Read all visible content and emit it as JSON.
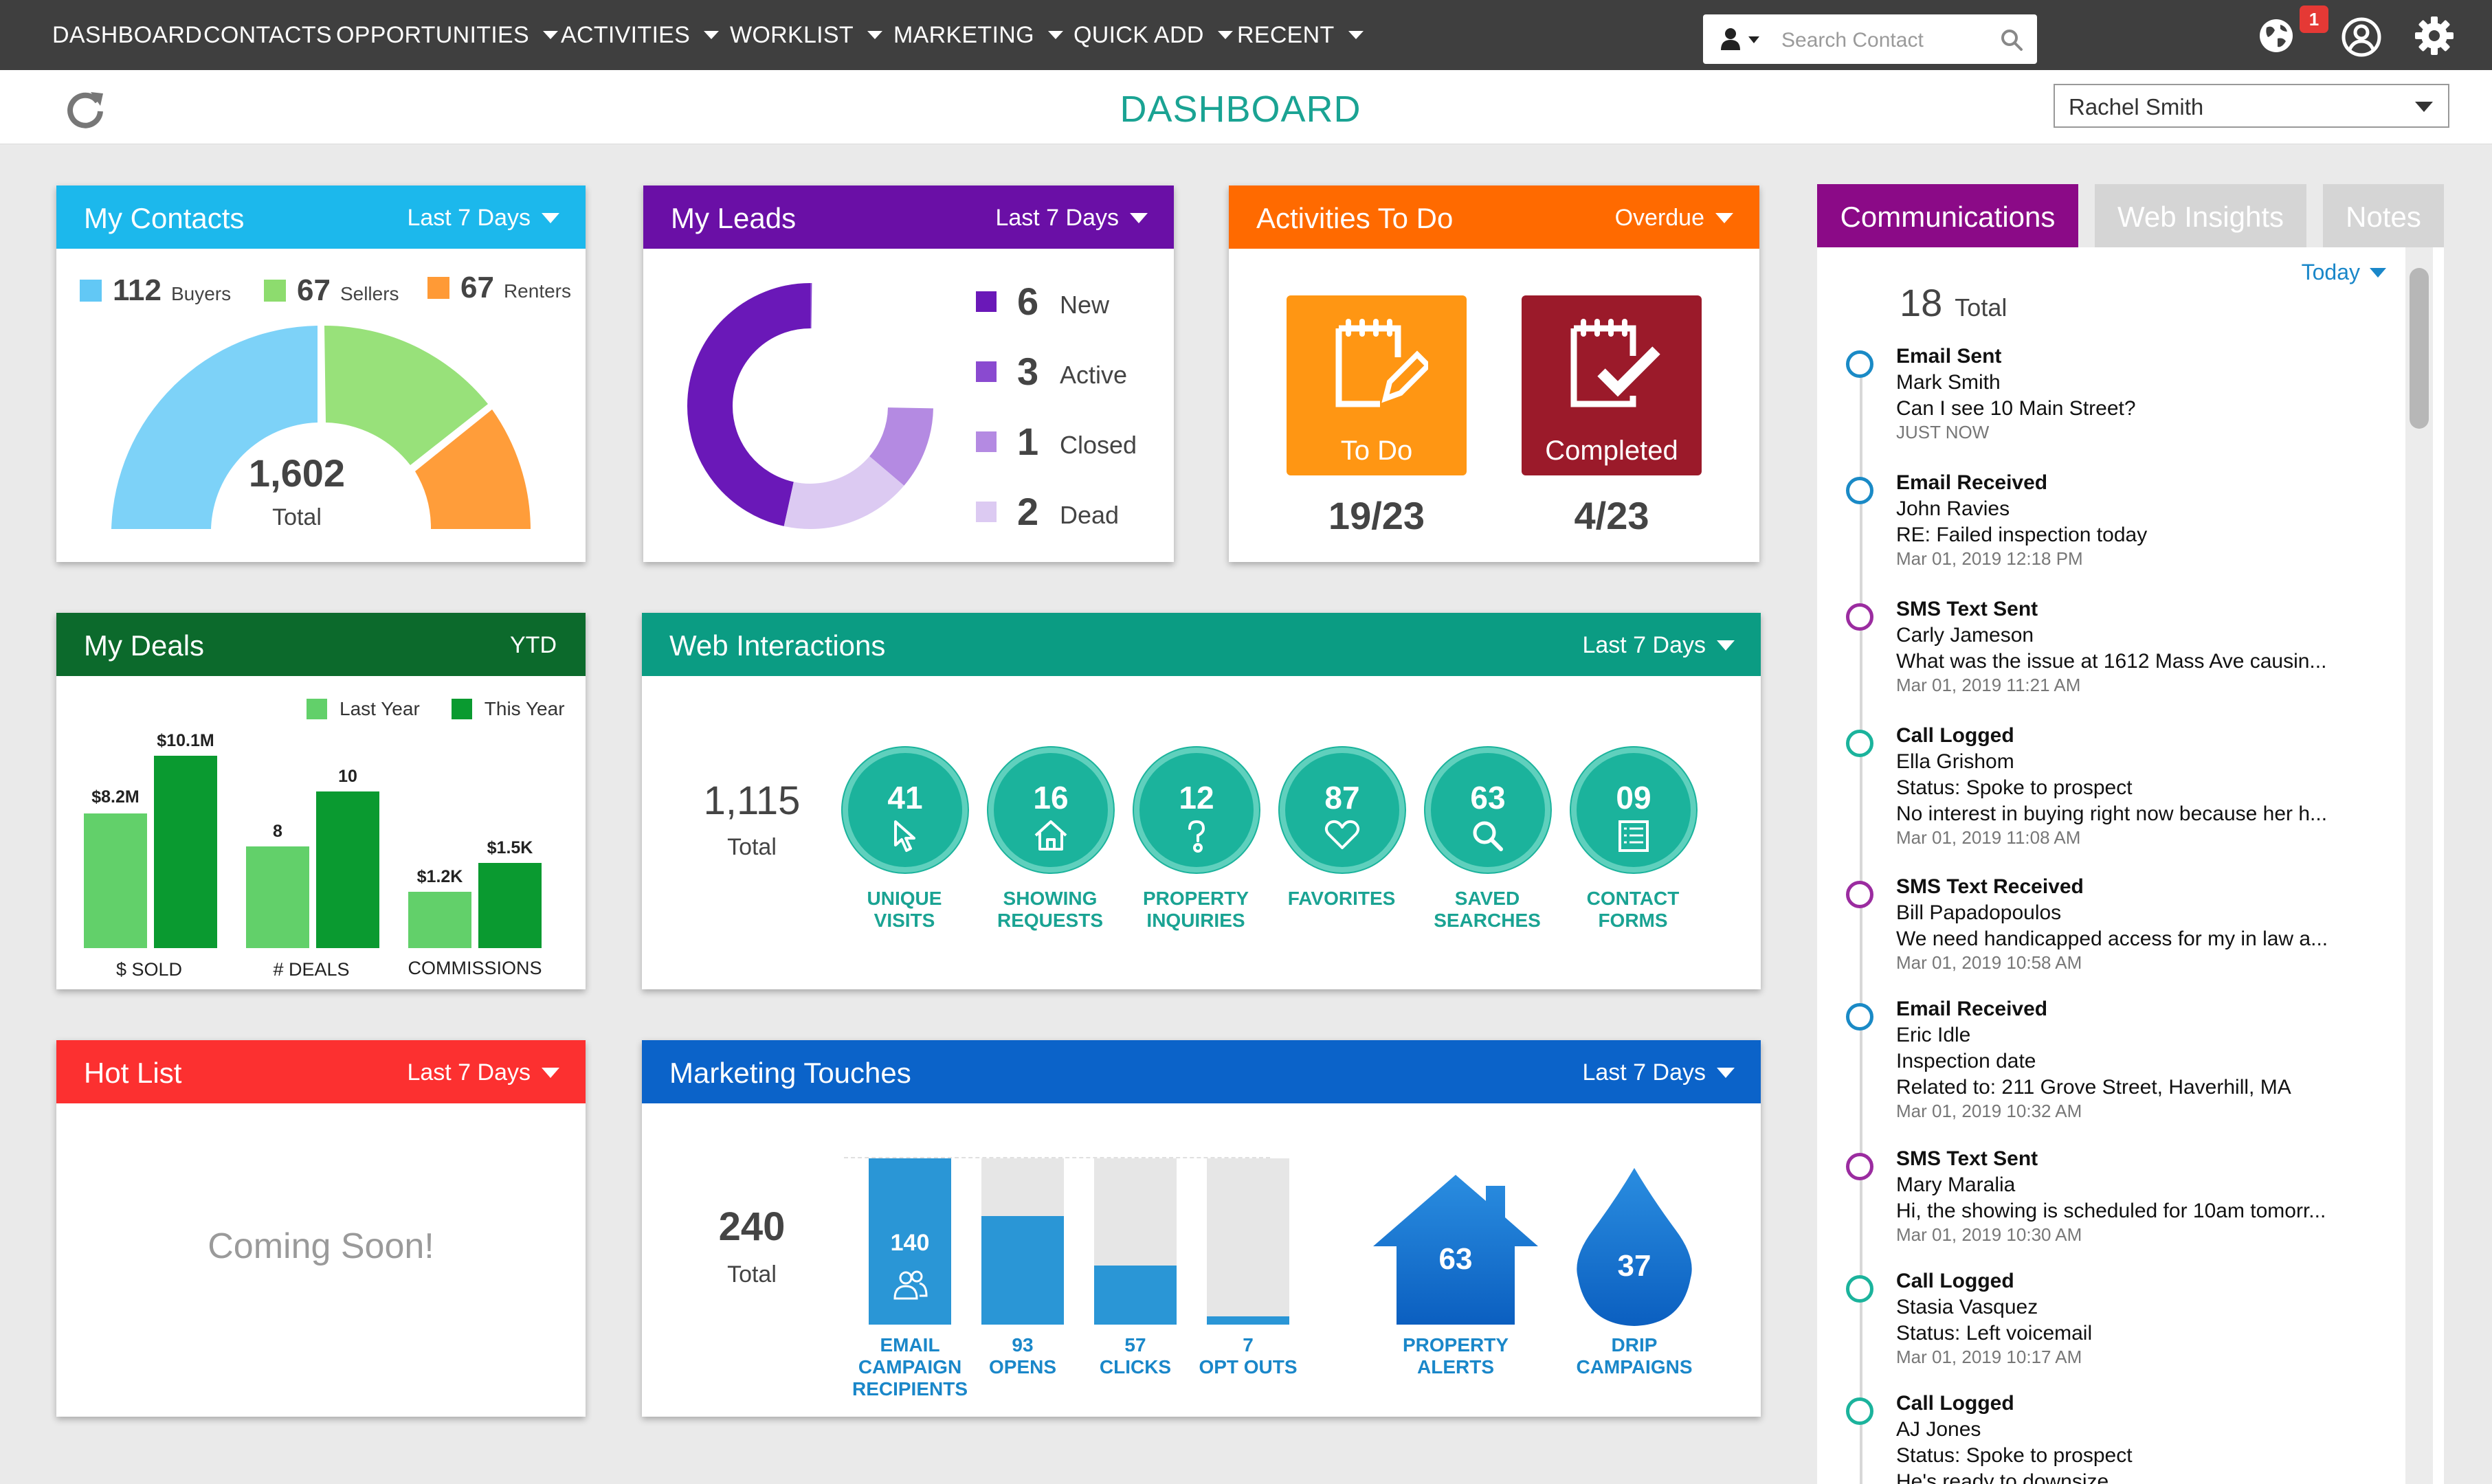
{
  "nav": {
    "items": [
      "DASHBOARD",
      "CONTACTS",
      "OPPORTUNITIES",
      "ACTIVITIES",
      "WORKLIST",
      "MARKETING",
      "QUICK ADD",
      "RECENT"
    ],
    "search_placeholder": "Search Contact",
    "notification_count": "1"
  },
  "header": {
    "title": "DASHBOARD",
    "agent": "Rachel Smith"
  },
  "contacts": {
    "title": "My Contacts",
    "filter": "Last 7 Days",
    "legend": [
      {
        "value": "112",
        "label": "Buyers",
        "color": "#62c8f5"
      },
      {
        "value": "67",
        "label": "Sellers",
        "color": "#8ddc6e"
      },
      {
        "value": "67",
        "label": "Renters",
        "color": "#ff9a36"
      }
    ],
    "total": "1,602",
    "total_label": "Total"
  },
  "leads": {
    "title": "My Leads",
    "filter": "Last 7 Days",
    "items": [
      {
        "value": "6",
        "label": "New",
        "color": "#6a18b8"
      },
      {
        "value": "3",
        "label": "Active",
        "color": "#8a4ad0"
      },
      {
        "value": "1",
        "label": "Closed",
        "color": "#b48ae2"
      },
      {
        "value": "2",
        "label": "Dead",
        "color": "#dccaf2"
      }
    ]
  },
  "activities": {
    "title": "Activities To Do",
    "filter": "Overdue",
    "todo_label": "To Do",
    "todo_count": "19/23",
    "completed_label": "Completed",
    "completed_count": "4/23"
  },
  "deals": {
    "title": "My Deals",
    "filter": "YTD",
    "legend_last": "Last Year",
    "legend_this": "This Year",
    "groups": [
      {
        "label": "$ SOLD",
        "last_label": "$8.2M",
        "this_label": "$10.1M"
      },
      {
        "label": "# DEALS",
        "last_label": "8",
        "this_label": "10"
      },
      {
        "label": "COMMISSIONS",
        "last_label": "$1.2K",
        "this_label": "$1.5K"
      }
    ]
  },
  "web": {
    "title": "Web Interactions",
    "filter": "Last 7 Days",
    "total": "1,115",
    "total_label": "Total",
    "items": [
      {
        "value": "41",
        "label1": "UNIQUE",
        "label2": "VISITS",
        "icon": "cursor-icon"
      },
      {
        "value": "16",
        "label1": "SHOWING",
        "label2": "REQUESTS",
        "icon": "house-icon"
      },
      {
        "value": "12",
        "label1": "PROPERTY",
        "label2": "INQUIRIES",
        "icon": "question-icon"
      },
      {
        "value": "87",
        "label1": "FAVORITES",
        "label2": "",
        "icon": "heart-icon"
      },
      {
        "value": "63",
        "label1": "SAVED",
        "label2": "SEARCHES",
        "icon": "search-icon"
      },
      {
        "value": "09",
        "label1": "CONTACT",
        "label2": "FORMS",
        "icon": "form-icon"
      }
    ]
  },
  "hotlist": {
    "title": "Hot List",
    "filter": "Last 7 Days",
    "message": "Coming Soon!"
  },
  "marketing": {
    "title": "Marketing Touches",
    "filter": "Last 7 Days",
    "total": "240",
    "total_label": "Total",
    "bars": [
      {
        "value": "140",
        "label1": "EMAIL",
        "label2": "CAMPAIGN",
        "label3": "RECIPIENTS"
      },
      {
        "value": "93",
        "label1": "OPENS"
      },
      {
        "value": "57",
        "label1": "CLICKS"
      },
      {
        "value": "7",
        "label1": "OPT OUTS"
      }
    ],
    "alerts_value": "63",
    "alerts_label1": "PROPERTY",
    "alerts_label2": "ALERTS",
    "drip_value": "37",
    "drip_label1": "DRIP",
    "drip_label2": "CAMPAIGNS"
  },
  "comms": {
    "tabs": [
      "Communications",
      "Web Insights",
      "Notes"
    ],
    "filter": "Today",
    "total": "18",
    "total_label": "Total",
    "entries": [
      {
        "type": "Email Sent",
        "color": "#1a8ac6",
        "lines": [
          "Mark Smith",
          "Can I see 10 Main Street?"
        ],
        "time": "JUST NOW"
      },
      {
        "type": "Email Received",
        "color": "#1a8ac6",
        "lines": [
          "John Ravies",
          "RE: Failed inspection today"
        ],
        "time": "Mar 01, 2019 12:18 PM"
      },
      {
        "type": "SMS Text Sent",
        "color": "#9b2ca0",
        "lines": [
          "Carly Jameson",
          "What was the issue at 1612 Mass Ave causin..."
        ],
        "time": "Mar 01, 2019 11:21 AM"
      },
      {
        "type": "Call Logged",
        "color": "#1bb39c",
        "lines": [
          "Ella Grishom",
          "Status: Spoke to prospect",
          "No interest in buying right now because her h..."
        ],
        "time": "Mar 01, 2019 11:08 AM"
      },
      {
        "type": "SMS Text Received",
        "color": "#9b2ca0",
        "lines": [
          "Bill Papadopoulos",
          "We need handicapped access for my in law a..."
        ],
        "time": "Mar 01, 2019 10:58 AM"
      },
      {
        "type": "Email Received",
        "color": "#1a8ac6",
        "lines": [
          "Eric Idle",
          "Inspection date",
          "Related to: 211 Grove Street, Haverhill, MA"
        ],
        "time": "Mar 01, 2019 10:32 AM"
      },
      {
        "type": "SMS Text Sent",
        "color": "#9b2ca0",
        "lines": [
          "Mary Maralia",
          "Hi, the showing is scheduled for 10am tomorr..."
        ],
        "time": "Mar 01, 2019 10:30 AM"
      },
      {
        "type": "Call Logged",
        "color": "#1bb39c",
        "lines": [
          "Stasia Vasquez",
          "Status: Left voicemail"
        ],
        "time": "Mar 01, 2019 10:17 AM"
      },
      {
        "type": "Call Logged",
        "color": "#1bb39c",
        "lines": [
          "AJ Jones",
          "Status: Spoke to prospect",
          "He's ready to downsize"
        ],
        "time": ""
      }
    ]
  }
}
